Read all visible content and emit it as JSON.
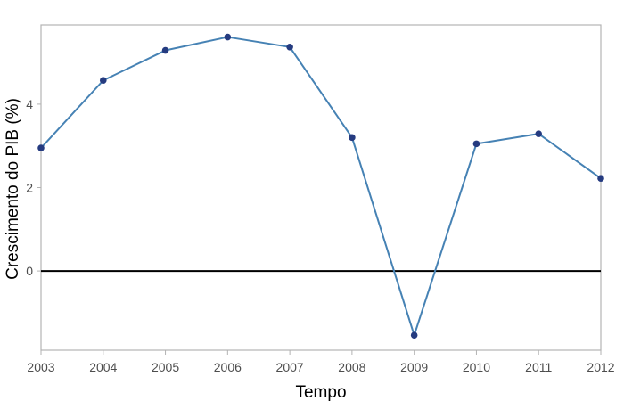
{
  "chart_data": {
    "type": "line",
    "title": "",
    "xlabel": "Tempo",
    "ylabel": "Crescimento do PIB (%)",
    "x": [
      2003,
      2004,
      2005,
      2006,
      2007,
      2008,
      2009,
      2010,
      2011,
      2012
    ],
    "series": [
      {
        "values": [
          2.95,
          4.57,
          5.29,
          5.61,
          5.37,
          3.2,
          -1.54,
          3.05,
          3.29,
          2.22
        ]
      }
    ],
    "xlim": [
      2003,
      2012
    ],
    "ylim": [
      -1.9,
      5.9
    ],
    "xticks": [
      "2003",
      "2004",
      "2005",
      "2006",
      "2007",
      "2008",
      "2009",
      "2010",
      "2011",
      "2012"
    ],
    "yticks": [
      "0",
      "2",
      "4"
    ],
    "yticks_values": [
      0,
      2,
      4
    ],
    "reference_line_y": 0,
    "grid": false,
    "legend": "none",
    "colors": {
      "line": "#4682b4",
      "point": "#253b80",
      "reference_line": "#000000",
      "frame": "#b3b3b3",
      "tick_label": "#4d4d4d"
    }
  }
}
